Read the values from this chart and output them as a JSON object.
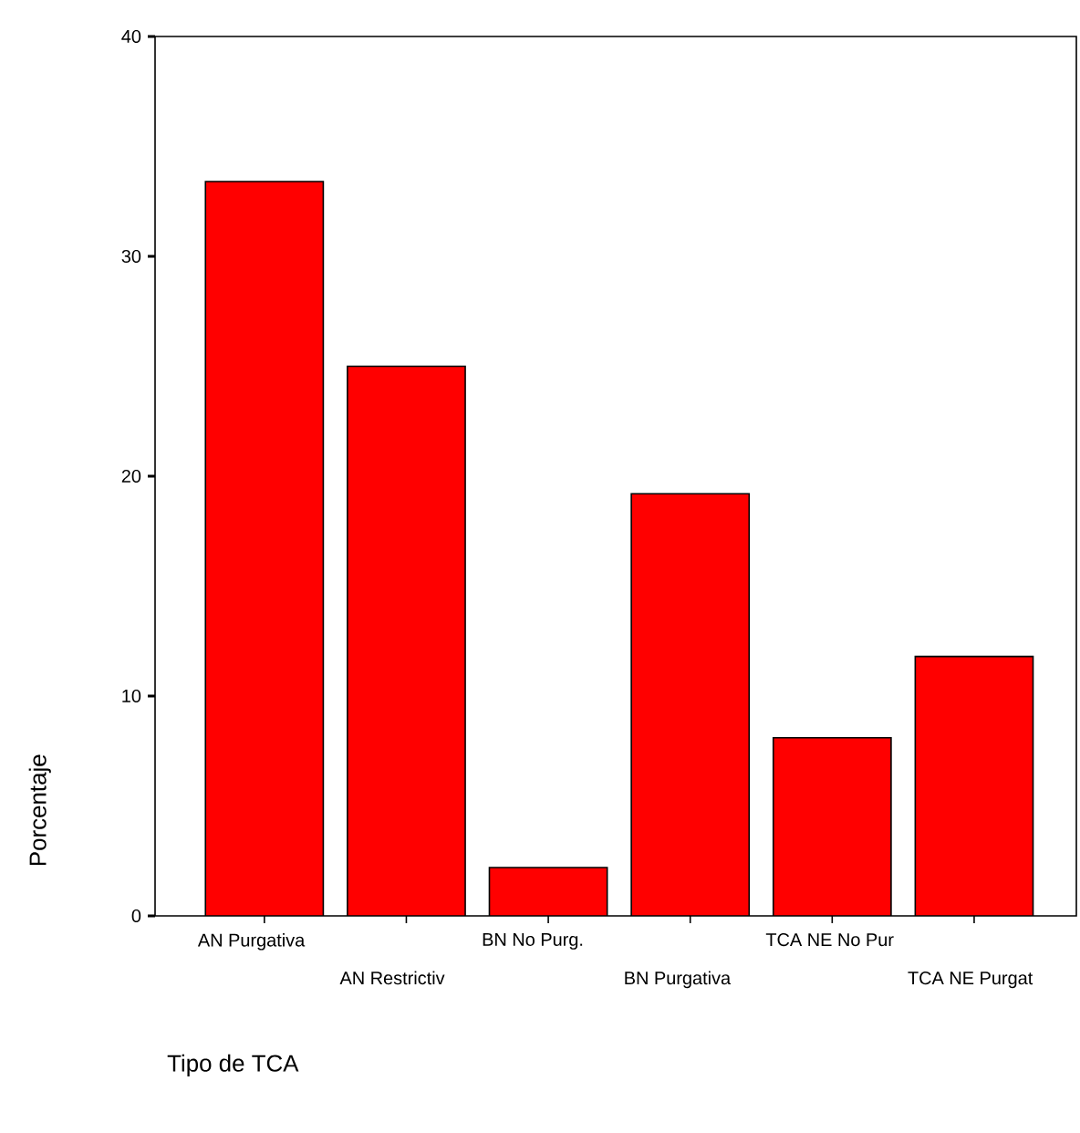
{
  "chart_data": {
    "type": "bar",
    "xlabel": "Tipo de TCA",
    "ylabel": "Porcentaje",
    "categories": [
      "AN Purgativa",
      "AN Restrictiv",
      "BN No Purg.",
      "BN Purgativa",
      "TCA NE No Pur",
      "TCA NE Purgat"
    ],
    "values": [
      33.4,
      25.0,
      2.2,
      19.2,
      8.1,
      11.8
    ],
    "color": "#ff0000",
    "ylim": [
      0,
      40
    ],
    "yticks": [
      0,
      10,
      20,
      30,
      40
    ],
    "grid": false
  }
}
